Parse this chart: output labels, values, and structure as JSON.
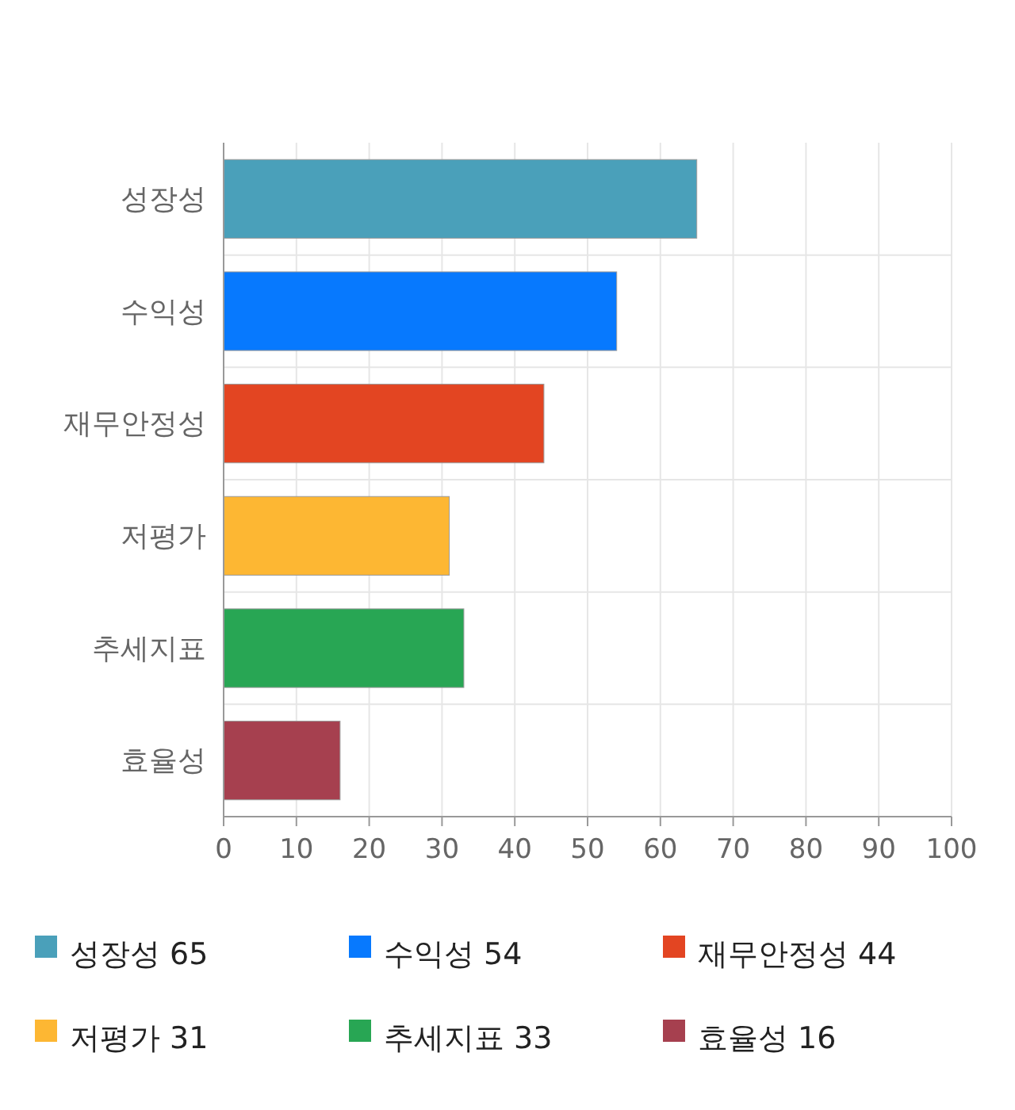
{
  "chart_data": {
    "type": "bar",
    "orientation": "horizontal",
    "categories": [
      "성장성",
      "수익성",
      "재무안정성",
      "저평가",
      "추세지표",
      "효율성"
    ],
    "series": [
      {
        "name": "성장성 65",
        "color": "#4aa0ba",
        "values": [
          65,
          null,
          null,
          null,
          null,
          null
        ]
      },
      {
        "name": "수익성 54",
        "color": "#0779fe",
        "values": [
          null,
          54,
          null,
          null,
          null,
          null
        ]
      },
      {
        "name": "재무안정성 44",
        "color": "#e34522",
        "values": [
          null,
          null,
          44,
          null,
          null,
          null
        ]
      },
      {
        "name": "저평가 31",
        "color": "#fdb733",
        "values": [
          null,
          null,
          null,
          31,
          null,
          null
        ]
      },
      {
        "name": "추세지표 33",
        "color": "#28a654",
        "values": [
          null,
          null,
          null,
          null,
          33,
          null
        ]
      },
      {
        "name": "효율성 16",
        "color": "#a6404f",
        "values": [
          null,
          null,
          null,
          null,
          null,
          16
        ]
      }
    ],
    "xlim": [
      0,
      100
    ],
    "xticks": [
      0,
      10,
      20,
      30,
      40,
      50,
      60,
      70,
      80,
      90,
      100
    ],
    "grid": true,
    "legend": "bottom"
  }
}
